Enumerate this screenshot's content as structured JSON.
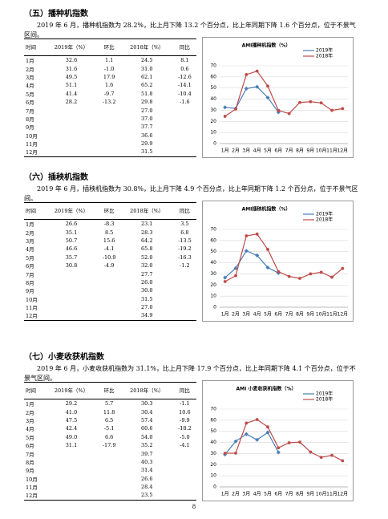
{
  "sections": [
    {
      "heading": "（五）播种机指数",
      "text": "2019 年 6 月，播种机指数为 28.2%，比上月下降 13.2 个百分点，比上年同期下降 1.6 个百分点，位于不景气区间。",
      "table": {
        "header": [
          "时间",
          "2019年（%）",
          "环比",
          "2018年（%）",
          "同比"
        ],
        "rows": [
          [
            "1月",
            "32.6",
            "1.1",
            "24.5",
            "8.1"
          ],
          [
            "2月",
            "31.6",
            "-1.0",
            "31.0",
            "0.6"
          ],
          [
            "3月",
            "49.5",
            "17.9",
            "62.1",
            "-12.6"
          ],
          [
            "4月",
            "51.1",
            "1.6",
            "65.2",
            "-14.1"
          ],
          [
            "5月",
            "41.4",
            "-9.7",
            "51.8",
            "-10.4"
          ],
          [
            "6月",
            "28.2",
            "-13.2",
            "29.8",
            "-1.6"
          ],
          [
            "7月",
            null,
            null,
            "27.0",
            null
          ],
          [
            "8月",
            null,
            null,
            "37.0",
            null
          ],
          [
            "9月",
            null,
            null,
            "37.7",
            null
          ],
          [
            "10月",
            null,
            null,
            "36.6",
            null
          ],
          [
            "11月",
            null,
            null,
            "29.9",
            null
          ],
          [
            "12月",
            null,
            null,
            "31.5",
            null
          ]
        ]
      },
      "chart": {
        "type": "line",
        "title": "AMI播种机指数（%）",
        "categories": [
          "1月",
          "2月",
          "3月",
          "4月",
          "5月",
          "6月",
          "7月",
          "8月",
          "9月",
          "10月",
          "11月",
          "12月"
        ],
        "ylim": [
          0,
          70
        ],
        "yticks": [
          0,
          10,
          20,
          30,
          40,
          50,
          60,
          70
        ],
        "series": [
          {
            "name": "2019年",
            "color": "#4a7ebb",
            "values": [
              32.6,
              31.6,
              49.5,
              51.1,
              41.4,
              28.2,
              null,
              null,
              null,
              null,
              null,
              null
            ]
          },
          {
            "name": "2018年",
            "color": "#be4b48",
            "values": [
              24.5,
              31.0,
              62.1,
              65.2,
              51.8,
              29.8,
              27.0,
              37.0,
              37.7,
              36.6,
              29.9,
              31.5
            ]
          }
        ]
      }
    },
    {
      "heading": "（六）插秧机指数",
      "text": "2019 年 6 月，插秧机指数为 30.8%，比上月下降 4.9 个百分点，比上年同期下降 1.2 个百分点，位于不景气区间。",
      "table": {
        "header": [
          "时间",
          "2019年（%）",
          "环比",
          "2018年（%）",
          "同比"
        ],
        "rows": [
          [
            "1月",
            "26.6",
            "-8.3",
            "23.1",
            "3.5"
          ],
          [
            "2月",
            "35.1",
            "8.5",
            "28.3",
            "6.8"
          ],
          [
            "3月",
            "50.7",
            "15.6",
            "64.2",
            "-13.5"
          ],
          [
            "4月",
            "46.6",
            "-4.1",
            "65.8",
            "-19.2"
          ],
          [
            "5月",
            "35.7",
            "-10.9",
            "52.0",
            "-16.3"
          ],
          [
            "6月",
            "30.8",
            "-4.9",
            "32.0",
            "-1.2"
          ],
          [
            "7月",
            null,
            null,
            "27.7",
            null
          ],
          [
            "8月",
            null,
            null,
            "26.0",
            null
          ],
          [
            "9月",
            null,
            null,
            "30.0",
            null
          ],
          [
            "10月",
            null,
            null,
            "31.5",
            null
          ],
          [
            "11月",
            null,
            null,
            "27.0",
            null
          ],
          [
            "12月",
            null,
            null,
            "34.9",
            null
          ]
        ]
      },
      "chart": {
        "type": "line",
        "title": "AMI插秧机指数（%）",
        "categories": [
          "1月",
          "2月",
          "3月",
          "4月",
          "5月",
          "6月",
          "7月",
          "8月",
          "9月",
          "10月",
          "11月",
          "12月"
        ],
        "ylim": [
          0,
          70
        ],
        "yticks": [
          0,
          10,
          20,
          30,
          40,
          50,
          60,
          70
        ],
        "series": [
          {
            "name": "2019年",
            "color": "#4a7ebb",
            "values": [
              26.6,
              35.1,
              50.7,
              46.6,
              35.7,
              30.8,
              null,
              null,
              null,
              null,
              null,
              null
            ]
          },
          {
            "name": "2018年",
            "color": "#be4b48",
            "values": [
              23.1,
              28.3,
              64.2,
              65.8,
              52.0,
              32.0,
              27.7,
              26.0,
              30.0,
              31.5,
              27.0,
              34.9
            ]
          }
        ]
      }
    },
    {
      "heading": "（七）小麦收获机指数",
      "text": "2019 年 6 月，小麦收获机指数为 31.1%，比上月下降 17.9 个百分点，比上年同期下降 4.1 个百分点，位于不景气区间。",
      "table": {
        "header": [
          "时间",
          "2019年（%）",
          "环比",
          "2018年（%）",
          "同比"
        ],
        "rows": [
          [
            "1月",
            "29.2",
            "5.7",
            "30.3",
            "-1.1"
          ],
          [
            "2月",
            "41.0",
            "11.8",
            "30.4",
            "10.6"
          ],
          [
            "3月",
            "47.5",
            "6.5",
            "57.4",
            "-9.9"
          ],
          [
            "4月",
            "42.4",
            "-5.1",
            "60.6",
            "-18.2"
          ],
          [
            "5月",
            "49.0",
            "6.6",
            "54.0",
            "-5.0"
          ],
          [
            "6月",
            "31.1",
            "-17.9",
            "35.2",
            "-4.1"
          ],
          [
            "7月",
            null,
            null,
            "39.7",
            null
          ],
          [
            "8月",
            null,
            null,
            "40.3",
            null
          ],
          [
            "9月",
            null,
            null,
            "31.4",
            null
          ],
          [
            "10月",
            null,
            null,
            "26.6",
            null
          ],
          [
            "11月",
            null,
            null,
            "28.4",
            null
          ],
          [
            "12月",
            null,
            null,
            "23.5",
            null
          ]
        ]
      },
      "chart": {
        "type": "line",
        "title": "AMI 小麦收获机指数（%）",
        "categories": [
          "1月",
          "2月",
          "3月",
          "4月",
          "5月",
          "6月",
          "7月",
          "8月",
          "9月",
          "10月",
          "11月",
          "12月"
        ],
        "ylim": [
          0,
          70
        ],
        "yticks": [
          0,
          10,
          20,
          30,
          40,
          50,
          60,
          70
        ],
        "series": [
          {
            "name": "2019年",
            "color": "#4a7ebb",
            "values": [
              29.2,
              41.0,
              47.5,
              42.4,
              49.0,
              31.1,
              null,
              null,
              null,
              null,
              null,
              null
            ]
          },
          {
            "name": "2018年",
            "color": "#be4b48",
            "values": [
              30.3,
              30.4,
              57.4,
              60.6,
              54.0,
              35.2,
              39.7,
              40.3,
              31.4,
              26.6,
              28.4,
              23.5
            ]
          }
        ]
      }
    }
  ],
  "page_number": "8"
}
